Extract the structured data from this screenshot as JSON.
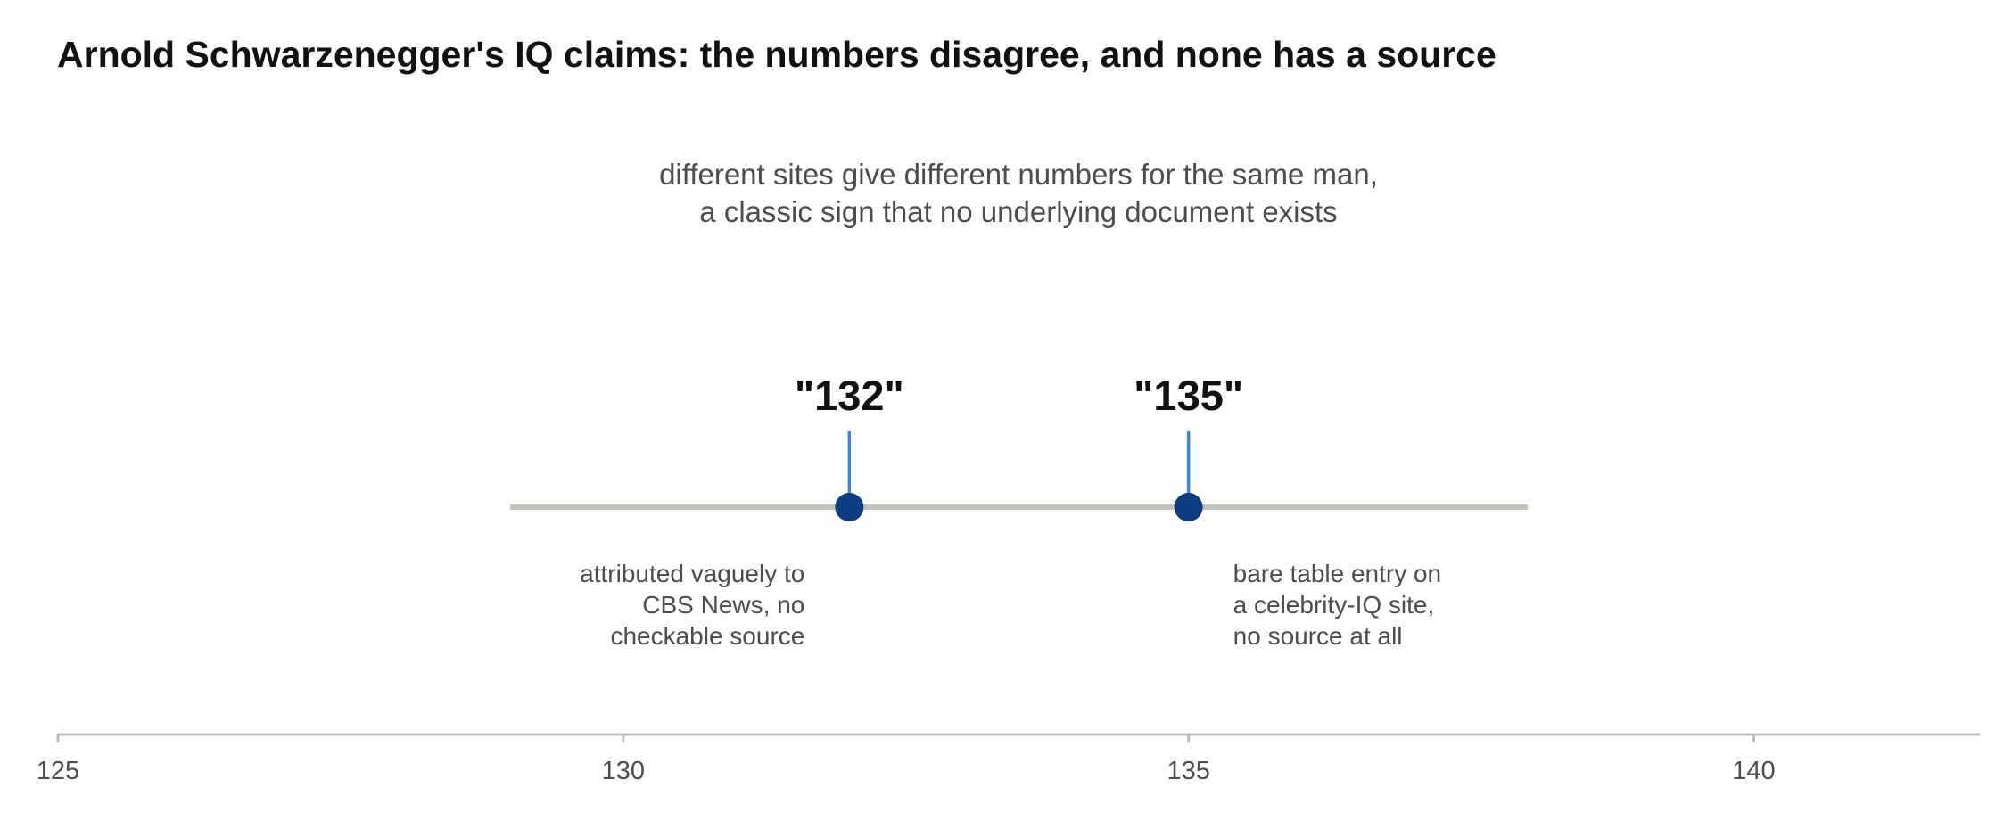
{
  "chart_data": {
    "type": "scatter",
    "title": "Arnold Schwarzenegger's IQ claims: the numbers disagree, and none has a source",
    "subtitle_lines": [
      "different sites give different numbers for the same man,",
      "a classic sign that no underlying document exists"
    ],
    "xlim": [
      125,
      142
    ],
    "x_ticks": [
      125,
      130,
      135,
      140
    ],
    "x_tick_labels": [
      "125",
      "130",
      "135",
      "140"
    ],
    "range_bar": [
      129,
      138
    ],
    "grid": false,
    "legend": "none",
    "points": [
      {
        "x": 132,
        "label": "\"132\"",
        "note_lines": [
          "attributed vaguely to",
          "CBS News, no",
          "checkable source"
        ],
        "note_side": "left"
      },
      {
        "x": 135,
        "label": "\"135\"",
        "note_lines": [
          "bare table entry on",
          "a celebrity-IQ site,",
          "no source at all"
        ],
        "note_side": "right"
      }
    ],
    "colors": {
      "point": "#0d3d80",
      "stem": "#3d85d8",
      "range_bar": "#c4c4bd",
      "axis": "#bdbdb7"
    }
  }
}
